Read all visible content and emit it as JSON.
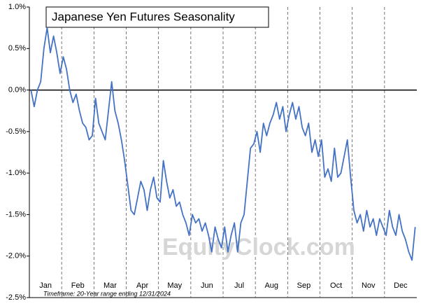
{
  "chart_data": {
    "type": "line",
    "title": "Japanese Yen Futures Seasonality",
    "annotation": "Timeframe: 20-Year range ending 12/31/2024",
    "watermark": "EquityClock.com",
    "categories": [
      null,
      null,
      null,
      null,
      "Jan",
      null,
      null,
      null,
      null,
      null,
      null,
      null,
      null,
      null,
      "Feb",
      null,
      null,
      null,
      null,
      null,
      null,
      null,
      null,
      null,
      "Mar",
      null,
      null,
      null,
      null,
      null,
      null,
      null,
      null,
      null,
      "Apr",
      null,
      null,
      null,
      null,
      null,
      null,
      null,
      null,
      null,
      "May",
      null,
      null,
      null,
      null,
      null,
      null,
      null,
      null,
      null,
      "Jun",
      null,
      null,
      null,
      null,
      null,
      null,
      null,
      null,
      null,
      "Jul",
      null,
      null,
      null,
      null,
      null,
      null,
      null,
      null,
      null,
      "Aug",
      null,
      null,
      null,
      null,
      null,
      null,
      null,
      null,
      null,
      "Sep",
      null,
      null,
      null,
      null,
      null,
      null,
      null,
      null,
      null,
      "Oct",
      null,
      null,
      null,
      null,
      null,
      null,
      null,
      null,
      null,
      "Nov",
      null,
      null,
      null,
      null,
      null,
      null,
      null,
      null,
      null,
      "Dec",
      null,
      null,
      null,
      null,
      null
    ],
    "series": [
      {
        "name": "Japanese Yen Futures",
        "color": "#4472c4",
        "values": [
          0.0,
          -0.2,
          0.0,
          0.1,
          0.5,
          0.75,
          0.45,
          0.65,
          0.45,
          0.2,
          0.4,
          0.25,
          0.0,
          -0.15,
          -0.05,
          -0.25,
          -0.4,
          -0.45,
          -0.6,
          -0.55,
          -0.1,
          -0.4,
          -0.5,
          -0.6,
          -0.25,
          0.1,
          -0.25,
          -0.4,
          -0.6,
          -0.85,
          -1.15,
          -1.45,
          -1.5,
          -1.3,
          -1.1,
          -1.2,
          -1.45,
          -1.2,
          -1.05,
          -1.3,
          -1.35,
          -0.85,
          -1.1,
          -1.3,
          -1.2,
          -1.4,
          -1.35,
          -1.5,
          -1.6,
          -1.75,
          -1.5,
          -1.6,
          -1.55,
          -1.7,
          -1.6,
          -1.75,
          -1.95,
          -1.65,
          -1.8,
          -1.9,
          -1.65,
          -1.95,
          -1.75,
          -1.6,
          -1.95,
          -1.6,
          -1.5,
          -1.1,
          -0.7,
          -0.65,
          -0.5,
          -0.75,
          -0.4,
          -0.55,
          -0.4,
          -0.3,
          -0.15,
          -0.35,
          -0.2,
          -0.5,
          -0.3,
          -0.15,
          -0.35,
          -0.2,
          -0.45,
          -0.55,
          -0.4,
          -0.75,
          -0.6,
          -0.8,
          -0.6,
          -1.05,
          -0.95,
          -1.1,
          -0.7,
          -1.05,
          -1.0,
          -0.8,
          -0.6,
          -1.05,
          -1.45,
          -1.6,
          -1.5,
          -1.7,
          -1.45,
          -1.65,
          -1.55,
          -1.75,
          -1.55,
          -1.65,
          -1.75,
          -1.45,
          -1.65,
          -1.75,
          -1.5,
          -1.7,
          -1.8,
          -1.95,
          -2.05,
          -1.65
        ]
      }
    ],
    "ylim": [
      -2.5,
      1.0
    ],
    "yticks": [
      {
        "value": -2.5,
        "label": "-2.5%"
      },
      {
        "value": -2.0,
        "label": "-2.0%"
      },
      {
        "value": -1.5,
        "label": "-1.5%"
      },
      {
        "value": -1.0,
        "label": "-1.0%"
      },
      {
        "value": -0.5,
        "label": "-0.5%"
      },
      {
        "value": 0.0,
        "label": "0.0%"
      },
      {
        "value": 0.5,
        "label": "0.5%"
      },
      {
        "value": 1.0,
        "label": "1.0%"
      }
    ],
    "zero_line": true
  }
}
